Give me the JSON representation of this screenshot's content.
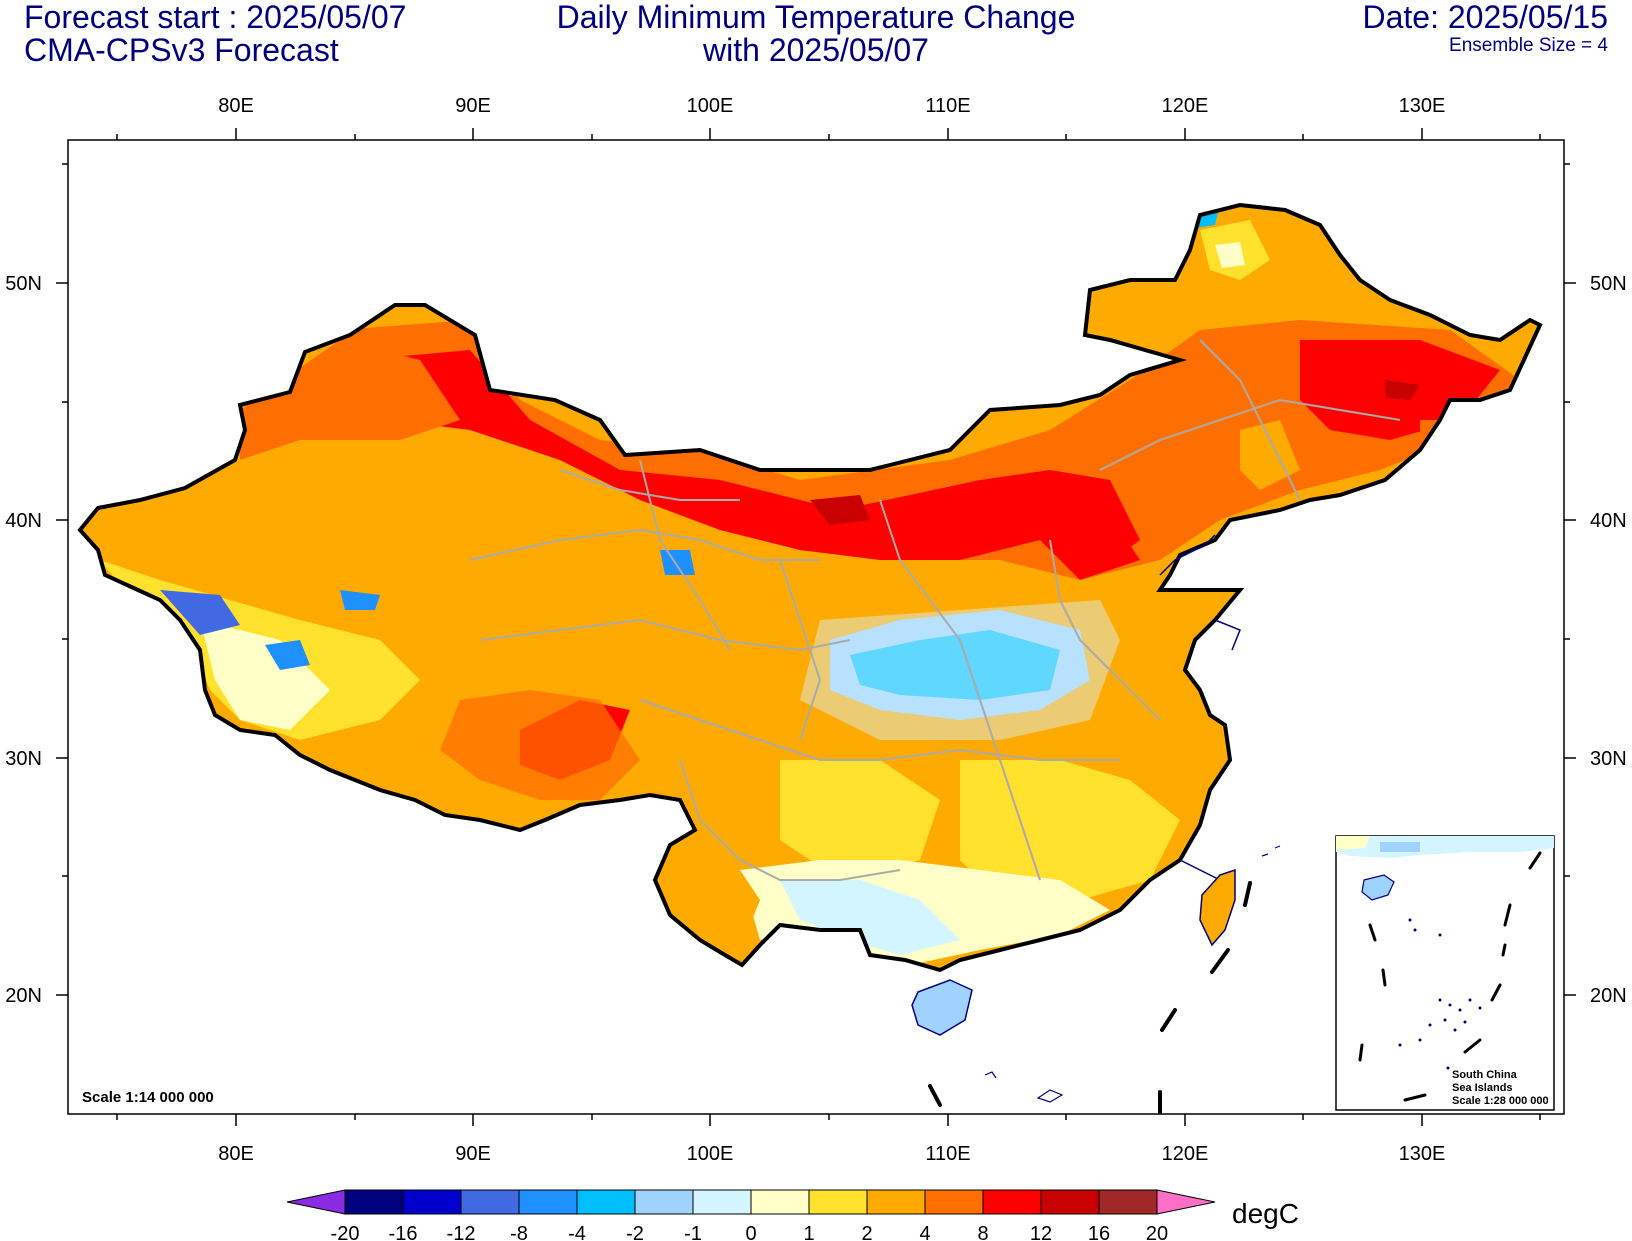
{
  "header": {
    "forecast_start": "Forecast start : 2025/05/07",
    "model": "CMA-CPSv3 Forecast",
    "title_line1": "Daily Minimum Temperature Change",
    "title_line2": "with 2025/05/07",
    "date": "Date: 2025/05/15",
    "ensemble": "Ensemble Size = 4"
  },
  "map": {
    "lon_ticks": [
      "80E",
      "90E",
      "100E",
      "110E",
      "120E",
      "130E"
    ],
    "lat_ticks": [
      "50N",
      "40N",
      "30N",
      "20N"
    ],
    "scale_main": "Scale 1:14 000 000",
    "inset": {
      "title_line1": "South China",
      "title_line2": "Sea Islands",
      "scale": "Scale 1:28 000 000"
    }
  },
  "colorbar": {
    "unit": "degC",
    "levels": [
      "-20",
      "-16",
      "-12",
      "-8",
      "-4",
      "-2",
      "-1",
      "0",
      "1",
      "2",
      "4",
      "8",
      "12",
      "16",
      "20"
    ],
    "under_color": "#8a2be2",
    "over_color": "#ff6ec7",
    "colors": [
      "#00007f",
      "#0000cd",
      "#4169e1",
      "#1e90ff",
      "#00bfff",
      "#a0d2ff",
      "#d2f5ff",
      "#ffffc8",
      "#ffe12e",
      "#ffaa00",
      "#ff6e00",
      "#ff0000",
      "#c80000",
      "#a02828"
    ]
  }
}
